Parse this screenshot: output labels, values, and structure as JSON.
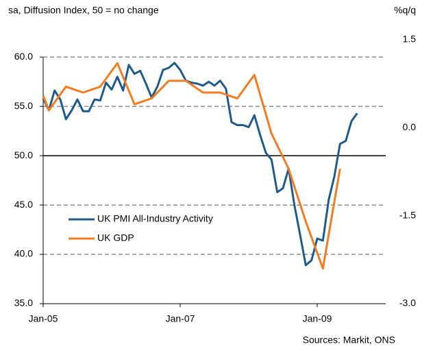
{
  "chart_data": {
    "type": "line",
    "subtitle": "sa, Diffusion Index, 50 = no change",
    "y2_label": "%q/q",
    "source": "Sources: Markit, ONS",
    "xlim": [
      0,
      60
    ],
    "xticks": [
      {
        "value": 0,
        "label": "Jan-05"
      },
      {
        "value": 24,
        "label": "Jan-07"
      },
      {
        "value": 48,
        "label": "Jan-09"
      }
    ],
    "ylim": [
      35,
      61.75
    ],
    "yticks": [
      {
        "value": 35,
        "label": "35.0"
      },
      {
        "value": 40,
        "label": "40.0"
      },
      {
        "value": 45,
        "label": "45.0"
      },
      {
        "value": 50,
        "label": "50.0"
      },
      {
        "value": 55,
        "label": "55.0"
      },
      {
        "value": 60,
        "label": "60.0"
      }
    ],
    "y2lim": [
      -3,
      1.5
    ],
    "y2ticks": [
      {
        "value": -3,
        "label": "-3.0"
      },
      {
        "value": -1.5,
        "label": "-1.5"
      },
      {
        "value": 0,
        "label": "0.0"
      },
      {
        "value": 1.5,
        "label": "1.5"
      }
    ],
    "grid": true,
    "hline": 50,
    "legend": "lower-left",
    "series": [
      {
        "name": "UK PMI All-Industry Activity",
        "color": "#1f5a8a",
        "x": [
          0,
          1,
          2,
          3,
          4,
          5,
          6,
          7,
          8,
          9,
          10,
          11,
          12,
          13,
          14,
          15,
          16,
          17,
          18,
          19,
          20,
          21,
          22,
          23,
          24,
          25,
          26,
          27,
          28,
          29,
          30,
          31,
          32,
          33,
          34,
          35,
          36,
          37,
          38,
          39,
          40,
          41,
          42,
          43,
          44,
          45,
          46,
          47,
          48,
          49,
          50,
          51,
          52,
          53,
          54,
          55
        ],
        "values": [
          55.8,
          54.6,
          56.6,
          55.7,
          53.7,
          54.6,
          55.7,
          54.5,
          54.5,
          55.7,
          55.6,
          57.4,
          56.7,
          58.0,
          56.6,
          59.2,
          58.3,
          58.6,
          57.3,
          55.9,
          57.0,
          58.7,
          58.9,
          59.4,
          58.7,
          57.6,
          57.4,
          57.3,
          57.1,
          57.5,
          57.1,
          57.6,
          56.8,
          53.4,
          53.1,
          53.1,
          52.9,
          54.1,
          52.1,
          50.3,
          49.6,
          46.3,
          46.7,
          48.7,
          45.0,
          42.0,
          38.9,
          39.4,
          41.6,
          41.4,
          45.5,
          47.9,
          51.2,
          51.5,
          53.5,
          54.3
        ]
      },
      {
        "name": "UK GDP",
        "color": "#f47b20",
        "axis": "y2",
        "x": [
          0,
          1,
          4,
          7,
          10,
          13,
          16,
          19,
          22,
          25,
          28,
          31,
          34,
          37,
          40,
          43,
          46,
          49,
          52
        ],
        "values": [
          0.55,
          0.3,
          0.7,
          0.6,
          0.7,
          1.1,
          0.4,
          0.5,
          0.8,
          0.8,
          0.6,
          0.6,
          0.5,
          0.9,
          -0.1,
          -0.7,
          -1.6,
          -2.4,
          -0.7
        ]
      }
    ]
  }
}
